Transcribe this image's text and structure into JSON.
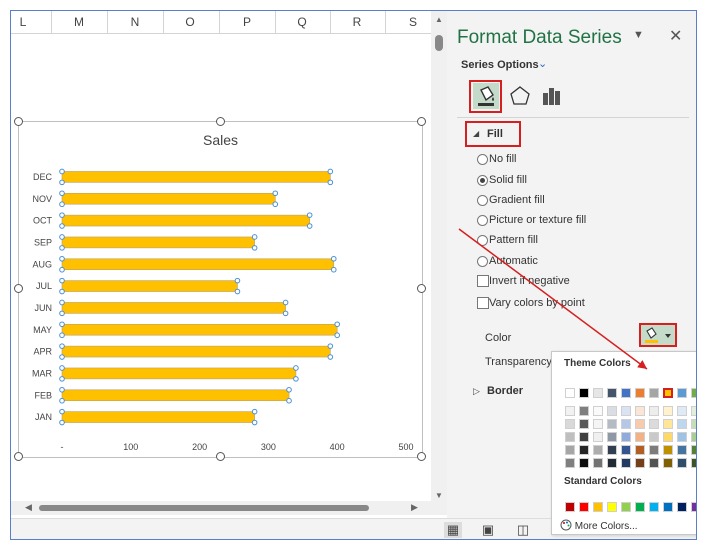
{
  "columns": [
    "L",
    "M",
    "N",
    "O",
    "P",
    "Q",
    "R",
    "S"
  ],
  "chart": {
    "title": "Sales"
  },
  "chart_data": {
    "type": "bar",
    "title": "Sales",
    "categories": [
      "JAN",
      "FEB",
      "MAR",
      "APR",
      "MAY",
      "JUN",
      "JUL",
      "AUG",
      "SEP",
      "OCT",
      "NOV",
      "DEC"
    ],
    "values": [
      280,
      330,
      340,
      390,
      400,
      325,
      255,
      395,
      280,
      360,
      310,
      390
    ],
    "xlim": [
      0,
      500
    ],
    "xticks": [
      "-",
      "100",
      "200",
      "300",
      "400",
      "500"
    ],
    "bar_color": "#FFC000",
    "grid": false,
    "legend": "none"
  },
  "pane": {
    "title": "Format Data Series",
    "series_options": "Series Options",
    "fill_section": "Fill",
    "border_section": "Border",
    "fill_options": [
      "No fill",
      "Solid fill",
      "Gradient fill",
      "Picture or texture fill",
      "Pattern fill",
      "Automatic"
    ],
    "selected_fill": "Solid fill",
    "invert_label": "Invert if negative",
    "vary_label": "Vary colors by point",
    "color_label": "Color",
    "transparency_label": "Transparency"
  },
  "popup": {
    "theme_colors": "Theme Colors",
    "standard_colors": "Standard Colors",
    "more_colors": "More Colors...",
    "theme_row": [
      "#FFFFFF",
      "#000000",
      "#E7E6E6",
      "#44546A",
      "#4472C4",
      "#ED7D31",
      "#A5A5A5",
      "#FFC000",
      "#5B9BD5",
      "#70AD47"
    ],
    "standard_row": [
      "#C00000",
      "#FF0000",
      "#FFC000",
      "#FFFF00",
      "#92D050",
      "#00B050",
      "#00B0F0",
      "#0070C0",
      "#002060",
      "#7030A0"
    ],
    "selected_color": "#FFC000"
  },
  "colors": {
    "accent": "#217346",
    "highlight": "#D61F1F"
  }
}
